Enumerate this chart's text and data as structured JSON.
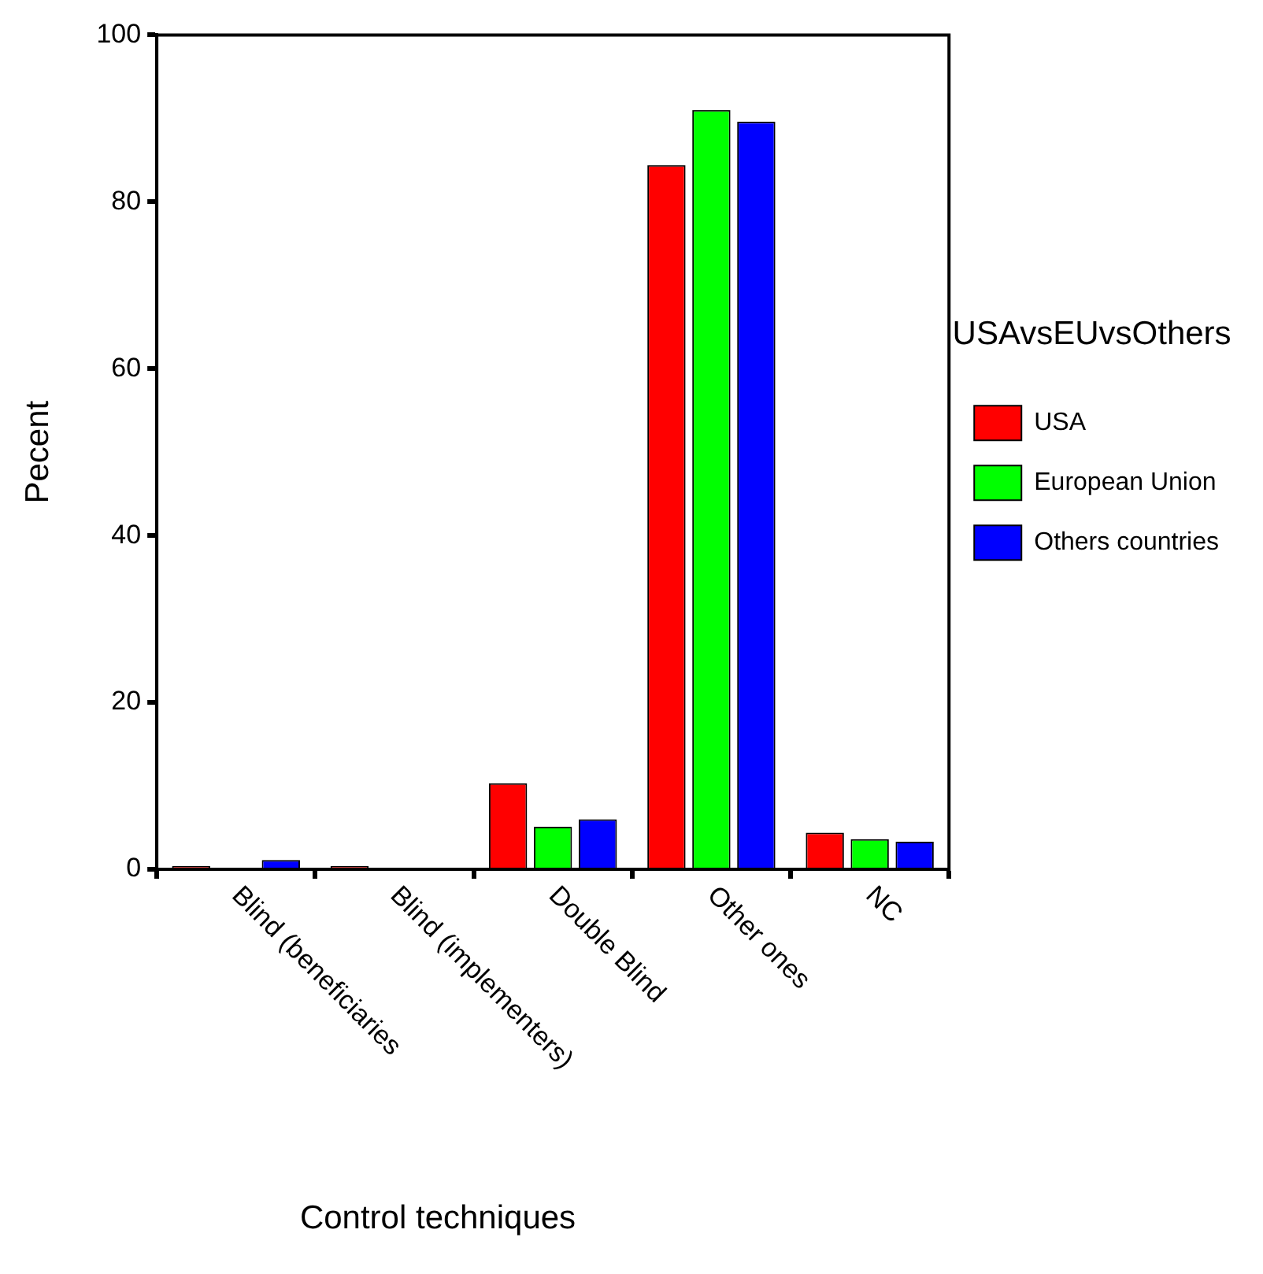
{
  "chart_data": {
    "type": "bar",
    "xlabel": "Control techniques",
    "ylabel": "Pecent",
    "legend_title": "USAvsEUvsOthers",
    "categories": [
      "Blind (beneficiaries",
      "Blind (implementers)",
      "Double Blind",
      "Other ones",
      "NC"
    ],
    "series": [
      {
        "name": "USA",
        "color": "#ff0000",
        "values": [
          0.4,
          0.4,
          10.3,
          84.4,
          4.4
        ]
      },
      {
        "name": "European Union",
        "color": "#00ff00",
        "values": [
          0,
          0,
          5.1,
          91.0,
          3.6
        ]
      },
      {
        "name": "Others countries",
        "color": "#0000ff",
        "values": [
          1.1,
          0,
          6.0,
          89.6,
          3.3
        ]
      }
    ],
    "ylim": [
      0,
      100
    ],
    "yticks": [
      0,
      20,
      40,
      60,
      80,
      100
    ],
    "grid": false,
    "legend": "right"
  }
}
